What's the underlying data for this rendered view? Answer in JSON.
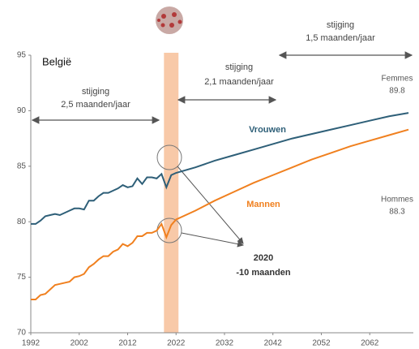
{
  "chart_data": {
    "type": "line",
    "title": "België",
    "x": [
      1992,
      1993,
      1994,
      1995,
      1996,
      1997,
      1998,
      1999,
      2000,
      2001,
      2002,
      2003,
      2004,
      2005,
      2006,
      2007,
      2008,
      2009,
      2010,
      2011,
      2012,
      2013,
      2014,
      2015,
      2016,
      2017,
      2018,
      2019,
      2020,
      2021,
      2022,
      2026,
      2030,
      2034,
      2038,
      2042,
      2046,
      2050,
      2054,
      2058,
      2062,
      2066,
      2070
    ],
    "series": [
      {
        "name": "Vrouwen",
        "color": "#2e5f78",
        "values": [
          79.8,
          79.8,
          80.1,
          80.5,
          80.6,
          80.7,
          80.6,
          80.8,
          81.0,
          81.2,
          81.2,
          81.1,
          81.9,
          81.9,
          82.3,
          82.6,
          82.6,
          82.8,
          83.0,
          83.3,
          83.1,
          83.2,
          83.9,
          83.4,
          84.0,
          84.0,
          83.9,
          84.3,
          83.1,
          84.2,
          84.4,
          84.9,
          85.5,
          86.0,
          86.5,
          87.0,
          87.5,
          87.9,
          88.3,
          88.7,
          89.1,
          89.5,
          89.8
        ]
      },
      {
        "name": "Mannen",
        "color": "#f0801f",
        "values": [
          73.0,
          73.0,
          73.4,
          73.5,
          73.9,
          74.3,
          74.4,
          74.5,
          74.6,
          75.0,
          75.1,
          75.3,
          75.9,
          76.2,
          76.6,
          76.9,
          76.9,
          77.3,
          77.5,
          78.0,
          77.8,
          78.1,
          78.7,
          78.7,
          79.0,
          79.0,
          79.2,
          79.8,
          78.6,
          79.7,
          80.2,
          81.0,
          81.9,
          82.7,
          83.5,
          84.2,
          84.9,
          85.6,
          86.2,
          86.8,
          87.3,
          87.8,
          88.3
        ]
      }
    ],
    "end_labels": [
      {
        "label": "Femmes",
        "value": 89.8
      },
      {
        "label": "Hommes",
        "value": 88.3
      }
    ],
    "annotations": [
      [
        "stijging",
        "2,5 maanden/jaar"
      ],
      [
        "stijging",
        "2,1 maanden/jaar"
      ],
      [
        "stijging",
        "1,5 maanden/jaar"
      ],
      [
        "2020",
        "-10 maanden"
      ]
    ],
    "highlight_range": [
      2019.5,
      2022.5
    ],
    "xlim": [
      1992,
      2071
    ],
    "ylim": [
      70,
      95
    ],
    "xticks": [
      1992,
      2002,
      2012,
      2022,
      2032,
      2042,
      2052,
      2062
    ],
    "yticks": [
      70,
      75,
      80,
      85,
      90,
      95
    ]
  }
}
